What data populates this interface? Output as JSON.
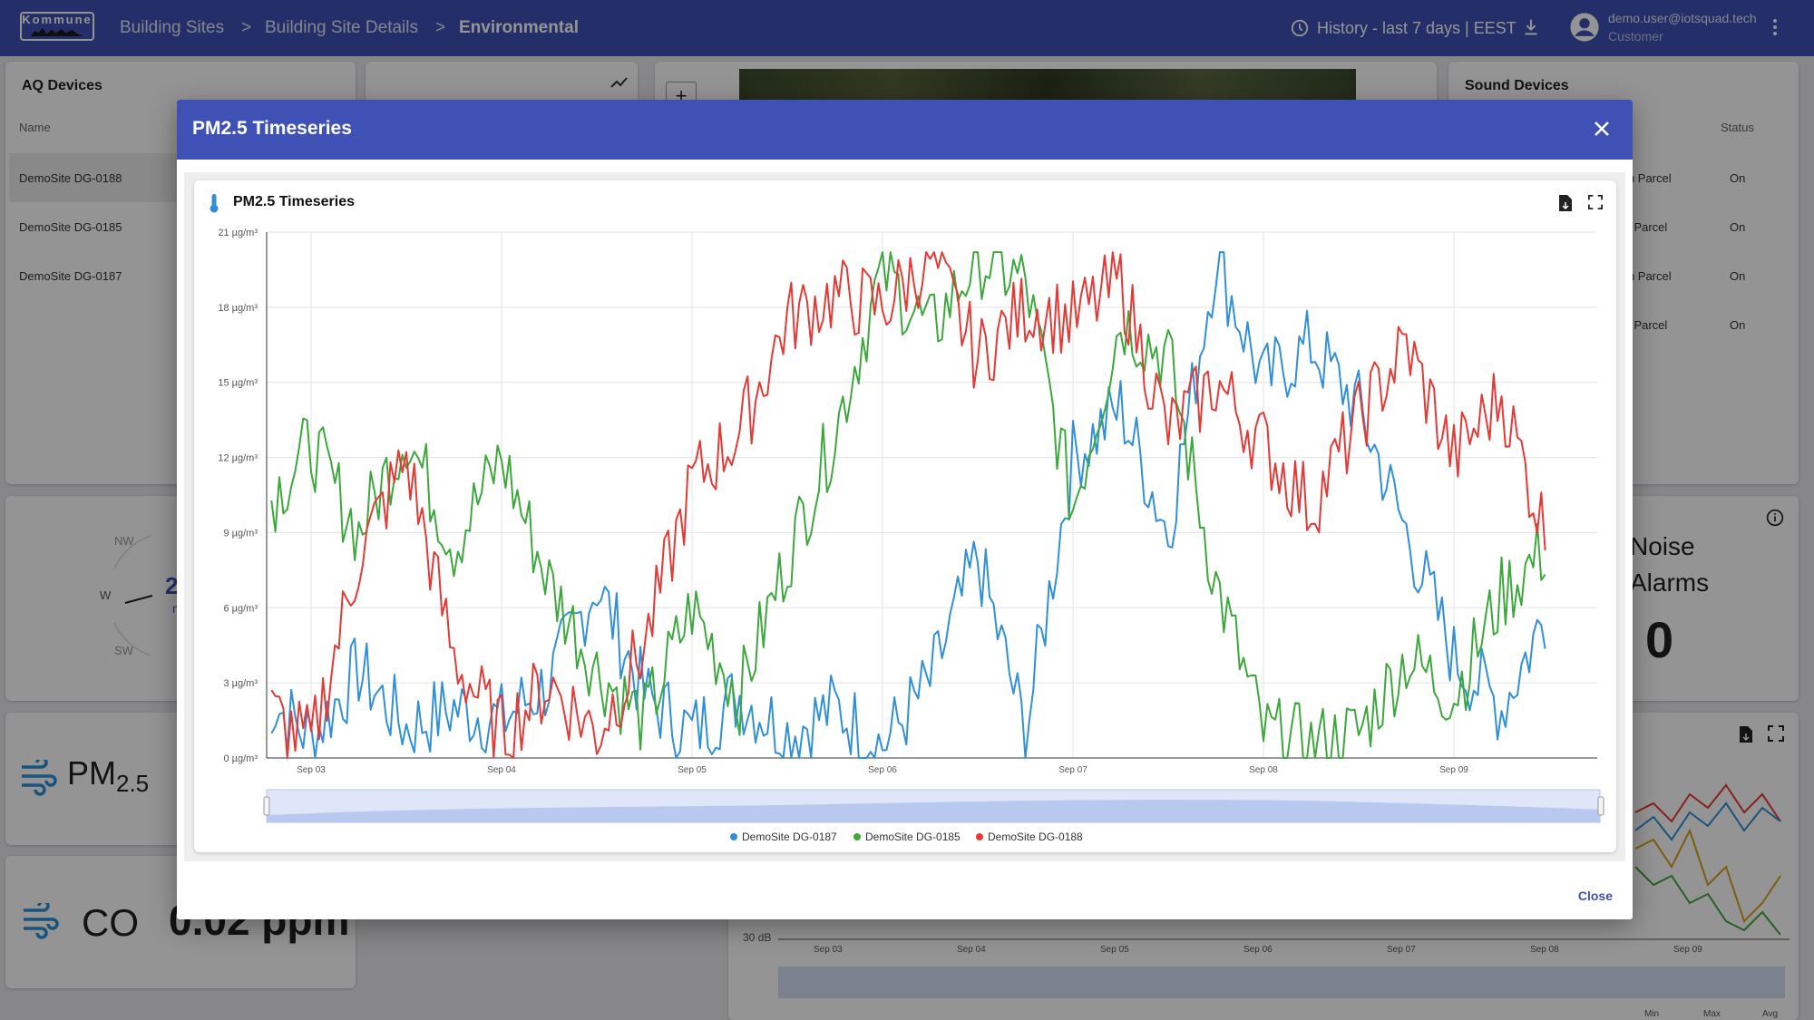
{
  "app": {
    "logo_text": "Kommune",
    "breadcrumb": [
      "Building Sites",
      "Building Site Details",
      "Environmental"
    ],
    "breadcrumb_sep": ">",
    "history_label": "History - last 7 days | EEST",
    "user_email": "demo.user@iotsquad.tech",
    "user_role": "Customer"
  },
  "background": {
    "aq_devices": {
      "title": "AQ Devices",
      "col_name": "Name",
      "rows": [
        "DemoSite DG-0188",
        "DemoSite DG-0185",
        "DemoSite DG-0187"
      ]
    },
    "sound_devices": {
      "title": "Sound Devices",
      "col_status": "Status",
      "rows": [
        {
          "parcel": "rth Parcel",
          "status": "On"
        },
        {
          "parcel": "th Parcel",
          "status": "On"
        },
        {
          "parcel": "rth Parcel",
          "status": "On"
        },
        {
          "parcel": "th Parcel",
          "status": "On"
        }
      ]
    },
    "compass": {
      "nw": "NW",
      "w": "W",
      "sw": "SW",
      "value_partial": "2",
      "unit_partial": "m"
    },
    "noise_alarms": {
      "line1": "Noise",
      "line2": "Alarms",
      "value": "0"
    },
    "pm25_tile": {
      "label": "PM",
      "sub": "2.5"
    },
    "co_tile": {
      "label": "CO",
      "value": "0.02 ppm"
    },
    "sound_chart": {
      "y_label": "30 dB",
      "ticks": [
        "Sep 03",
        "Sep 04",
        "Sep 05",
        "Sep 06",
        "Sep 07",
        "Sep 08",
        "Sep 09"
      ],
      "footer": [
        "Min",
        "Max",
        "Avg"
      ]
    }
  },
  "dialog": {
    "title": "PM2.5 Timeseries",
    "close_label": "Close"
  },
  "chart_data": {
    "type": "line",
    "title": "PM2.5 Timeseries",
    "y_unit": "µg/m³",
    "ylim": [
      0,
      21
    ],
    "y_ticks": [
      0,
      3,
      6,
      9,
      12,
      15,
      18,
      21
    ],
    "y_tick_labels": [
      "0 µg/m³",
      "3 µg/m³",
      "6 µg/m³",
      "9 µg/m³",
      "12 µg/m³",
      "15 µg/m³",
      "18 µg/m³",
      "21 µg/m³"
    ],
    "x_ticks": [
      "Sep 03",
      "Sep 04",
      "Sep 05",
      "Sep 06",
      "Sep 07",
      "Sep 08",
      "Sep 09"
    ],
    "x_step": "6h",
    "x": [
      "Sep 02 18:00",
      "Sep 03 00:00",
      "Sep 03 06:00",
      "Sep 03 12:00",
      "Sep 03 18:00",
      "Sep 04 00:00",
      "Sep 04 06:00",
      "Sep 04 12:00",
      "Sep 04 18:00",
      "Sep 05 00:00",
      "Sep 05 06:00",
      "Sep 05 12:00",
      "Sep 05 18:00",
      "Sep 06 00:00",
      "Sep 06 06:00",
      "Sep 06 12:00",
      "Sep 06 18:00",
      "Sep 07 00:00",
      "Sep 07 06:00",
      "Sep 07 12:00",
      "Sep 07 18:00",
      "Sep 08 00:00",
      "Sep 08 06:00",
      "Sep 08 12:00",
      "Sep 08 18:00",
      "Sep 09 00:00",
      "Sep 09 06:00",
      "Sep 09 12:00"
    ],
    "grid": true,
    "legend_position": "bottom",
    "series": [
      {
        "name": "DemoSite DG-0187",
        "color": "#2f8fd8",
        "values": [
          2.5,
          0.8,
          3.5,
          1.2,
          2.0,
          1.5,
          3.0,
          7.0,
          2.5,
          1.0,
          2.5,
          1.0,
          2.0,
          0.5,
          3.0,
          8.0,
          1.0,
          12.0,
          14.0,
          9.0,
          20.0,
          15.0,
          16.5,
          14.0,
          9.0,
          4.0,
          2.0,
          6.0
        ]
      },
      {
        "name": "DemoSite DG-0185",
        "color": "#3ca83c",
        "values": [
          10.0,
          12.5,
          9.0,
          13.0,
          8.5,
          12.0,
          7.0,
          3.5,
          1.5,
          6.0,
          2.5,
          8.0,
          13.0,
          19.5,
          17.0,
          20.0,
          19.0,
          10.0,
          17.5,
          16.0,
          7.0,
          1.0,
          0.5,
          1.0,
          4.0,
          2.5,
          6.5,
          8.5
        ]
      },
      {
        "name": "DemoSite DG-0188",
        "color": "#e53935",
        "values": [
          2.0,
          0.5,
          8.0,
          12.0,
          4.0,
          1.0,
          3.0,
          1.0,
          4.5,
          11.0,
          13.0,
          17.5,
          18.5,
          18.0,
          20.0,
          16.0,
          18.0,
          17.5,
          19.0,
          13.0,
          15.0,
          12.5,
          10.0,
          13.5,
          16.5,
          12.0,
          14.5,
          8.5
        ]
      }
    ]
  }
}
